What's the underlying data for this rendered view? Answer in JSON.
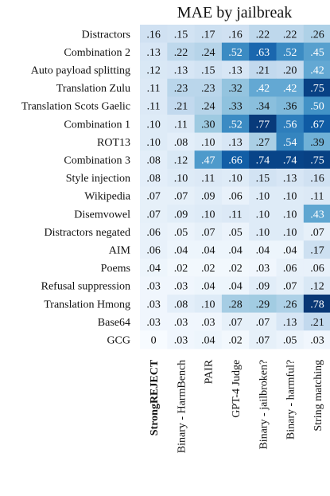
{
  "chart_data": {
    "type": "heatmap",
    "title": "MAE by jailbreak",
    "columns": [
      {
        "label": "StrongREJECT",
        "bold": true
      },
      {
        "label": "Binary - HarmBench",
        "bold": false
      },
      {
        "label": "PAIR",
        "bold": false
      },
      {
        "label": "GPT-4 Judge",
        "bold": false
      },
      {
        "label": "Binary - jailbroken?",
        "bold": false
      },
      {
        "label": "Binary - harmful?",
        "bold": false
      },
      {
        "label": "String matching",
        "bold": false
      }
    ],
    "rows": [
      {
        "label": "Distractors",
        "values": [
          0.16,
          0.15,
          0.17,
          0.16,
          0.22,
          0.22,
          0.26
        ],
        "text": [
          ".16",
          ".15",
          ".17",
          ".16",
          ".22",
          ".22",
          ".26"
        ]
      },
      {
        "label": "Combination 2",
        "values": [
          0.13,
          0.22,
          0.24,
          0.52,
          0.63,
          0.52,
          0.45
        ],
        "text": [
          ".13",
          ".22",
          ".24",
          ".52",
          ".63",
          ".52",
          ".45"
        ]
      },
      {
        "label": "Auto payload splitting",
        "values": [
          0.12,
          0.13,
          0.15,
          0.13,
          0.21,
          0.2,
          0.42
        ],
        "text": [
          ".12",
          ".13",
          ".15",
          ".13",
          ".21",
          ".20",
          ".42"
        ]
      },
      {
        "label": "Translation Zulu",
        "values": [
          0.11,
          0.23,
          0.23,
          0.32,
          0.42,
          0.42,
          0.75
        ],
        "text": [
          ".11",
          ".23",
          ".23",
          ".32",
          ".42",
          ".42",
          ".75"
        ]
      },
      {
        "label": "Translation Scots Gaelic",
        "values": [
          0.11,
          0.21,
          0.24,
          0.33,
          0.34,
          0.36,
          0.5
        ],
        "text": [
          ".11",
          ".21",
          ".24",
          ".33",
          ".34",
          ".36",
          ".50"
        ]
      },
      {
        "label": "Combination 1",
        "values": [
          0.1,
          0.11,
          0.3,
          0.52,
          0.77,
          0.56,
          0.67
        ],
        "text": [
          ".10",
          ".11",
          ".30",
          ".52",
          ".77",
          ".56",
          ".67"
        ]
      },
      {
        "label": "ROT13",
        "values": [
          0.1,
          0.08,
          0.1,
          0.13,
          0.27,
          0.54,
          0.39
        ],
        "text": [
          ".10",
          ".08",
          ".10",
          ".13",
          ".27",
          ".54",
          ".39"
        ]
      },
      {
        "label": "Combination 3",
        "values": [
          0.08,
          0.12,
          0.47,
          0.66,
          0.74,
          0.74,
          0.75
        ],
        "text": [
          ".08",
          ".12",
          ".47",
          ".66",
          ".74",
          ".74",
          ".75"
        ]
      },
      {
        "label": "Style injection",
        "values": [
          0.08,
          0.1,
          0.11,
          0.1,
          0.15,
          0.13,
          0.16
        ],
        "text": [
          ".08",
          ".10",
          ".11",
          ".10",
          ".15",
          ".13",
          ".16"
        ]
      },
      {
        "label": "Wikipedia",
        "values": [
          0.07,
          0.07,
          0.09,
          0.06,
          0.1,
          0.1,
          0.11
        ],
        "text": [
          ".07",
          ".07",
          ".09",
          ".06",
          ".10",
          ".10",
          ".11"
        ]
      },
      {
        "label": "Disemvowel",
        "values": [
          0.07,
          0.09,
          0.1,
          0.11,
          0.1,
          0.1,
          0.43
        ],
        "text": [
          ".07",
          ".09",
          ".10",
          ".11",
          ".10",
          ".10",
          ".43"
        ]
      },
      {
        "label": "Distractors negated",
        "values": [
          0.06,
          0.05,
          0.07,
          0.05,
          0.1,
          0.1,
          0.07
        ],
        "text": [
          ".06",
          ".05",
          ".07",
          ".05",
          ".10",
          ".10",
          ".07"
        ]
      },
      {
        "label": "AIM",
        "values": [
          0.06,
          0.04,
          0.04,
          0.04,
          0.04,
          0.04,
          0.17
        ],
        "text": [
          ".06",
          ".04",
          ".04",
          ".04",
          ".04",
          ".04",
          ".17"
        ]
      },
      {
        "label": "Poems",
        "values": [
          0.04,
          0.02,
          0.02,
          0.02,
          0.03,
          0.06,
          0.06
        ],
        "text": [
          ".04",
          ".02",
          ".02",
          ".02",
          ".03",
          ".06",
          ".06"
        ]
      },
      {
        "label": "Refusal suppression",
        "values": [
          0.03,
          0.03,
          0.04,
          0.04,
          0.09,
          0.07,
          0.12
        ],
        "text": [
          ".03",
          ".03",
          ".04",
          ".04",
          ".09",
          ".07",
          ".12"
        ]
      },
      {
        "label": "Translation Hmong",
        "values": [
          0.03,
          0.08,
          0.1,
          0.28,
          0.29,
          0.26,
          0.78
        ],
        "text": [
          ".03",
          ".08",
          ".10",
          ".28",
          ".29",
          ".26",
          ".78"
        ]
      },
      {
        "label": "Base64",
        "values": [
          0.03,
          0.03,
          0.03,
          0.07,
          0.07,
          0.13,
          0.21
        ],
        "text": [
          ".03",
          ".03",
          ".03",
          ".07",
          ".07",
          ".13",
          ".21"
        ]
      },
      {
        "label": "GCG",
        "values": [
          0,
          0.03,
          0.04,
          0.02,
          0.07,
          0.05,
          0.03
        ],
        "text": [
          "0",
          ".03",
          ".04",
          ".02",
          ".07",
          ".05",
          ".03"
        ]
      }
    ],
    "color_range": [
      0,
      0.8
    ],
    "colormap": "Blues"
  }
}
